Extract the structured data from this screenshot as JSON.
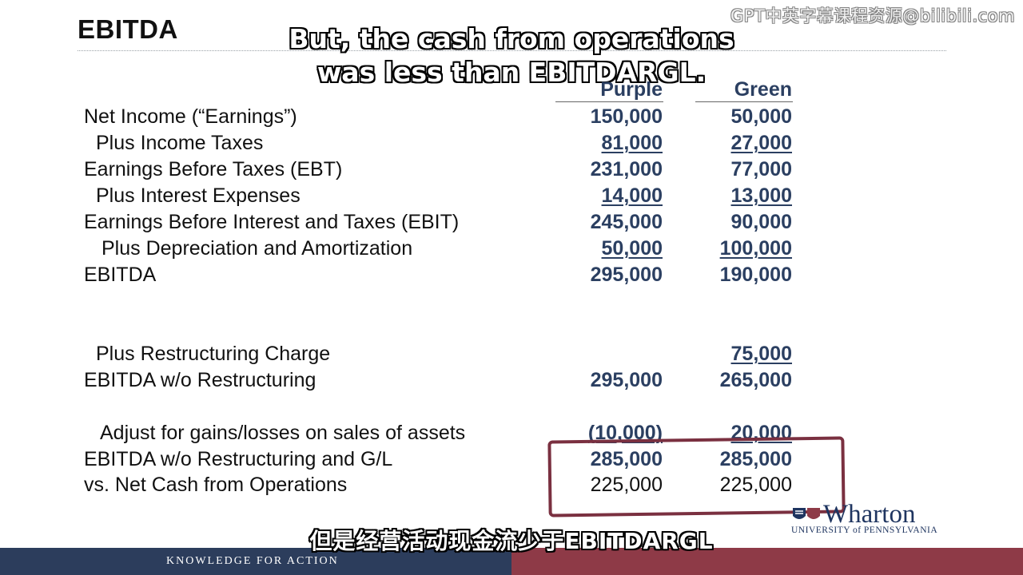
{
  "slide": {
    "title": "EBITDA",
    "watermark": "GPT中英字幕课程资源@bilibili.com",
    "subtitle_en_line1": "But, the cash from operations",
    "subtitle_en_line2": "was less than EBITDARGL.",
    "subtitle_zh": "但是经营活动现金流少于EBITDARGL"
  },
  "table": {
    "headers": {
      "purple": "Purple",
      "green": "Green"
    },
    "rows": [
      {
        "label": "Net Income (“Earnings”)",
        "purple": "150,000",
        "green": "50,000"
      },
      {
        "label": "Plus Income Taxes",
        "purple": "81,000",
        "green": "27,000"
      },
      {
        "label": "Earnings Before Taxes (EBT)",
        "purple": "231,000",
        "green": "77,000"
      },
      {
        "label": "Plus Interest Expenses",
        "purple": "14,000",
        "green": "13,000"
      },
      {
        "label": "Earnings Before Interest and Taxes (EBIT)",
        "purple": "245,000",
        "green": "90,000"
      },
      {
        "label": "Plus Depreciation and Amortization",
        "purple": "50,000",
        "green": "100,000"
      },
      {
        "label": "EBITDA",
        "purple": "295,000",
        "green": "190,000"
      },
      {
        "label": "Plus Restructuring Charge",
        "purple": "",
        "green": "75,000"
      },
      {
        "label": "EBITDA w/o Restructuring",
        "purple": "295,000",
        "green": "265,000"
      },
      {
        "label": "Adjust for gains/losses on sales of assets",
        "purple": "(10,000)",
        "green": "20,000"
      },
      {
        "label": "EBITDA w/o Restructuring and G/L",
        "purple": "285,000",
        "green": "285,000"
      },
      {
        "label": "vs.  Net Cash from Operations",
        "purple": "225,000",
        "green": "225,000"
      }
    ]
  },
  "logo": {
    "word": "Wharton",
    "university": "UNIVERSITY of PENNSYLVANIA"
  },
  "footer": {
    "tagline": "KNOWLEDGE FOR ACTION"
  },
  "colors": {
    "navy": "#2b3f61",
    "footer_navy": "#2c3d5c",
    "footer_maroon": "#8e3a47",
    "highlight_box": "#7a3040"
  }
}
